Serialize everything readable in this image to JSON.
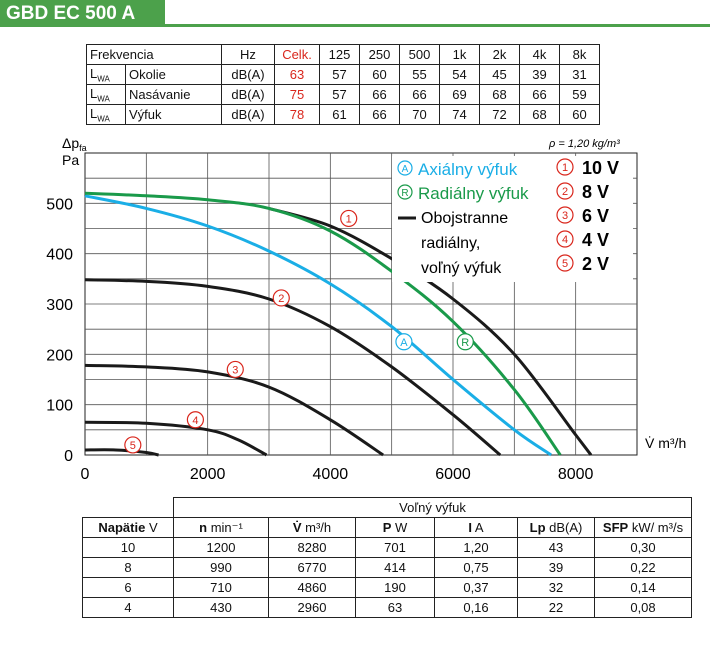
{
  "title": "GBD EC 500 A",
  "noise_table": {
    "headers": [
      "Frekvencia",
      "Hz",
      "Celk.",
      "125",
      "250",
      "500",
      "1k",
      "2k",
      "4k",
      "8k"
    ],
    "lwa": "L",
    "lwa_sub": "WA",
    "rows": [
      {
        "label": "Okolie",
        "unit": "dB(A)",
        "total": "63",
        "values": [
          "57",
          "60",
          "55",
          "54",
          "45",
          "39",
          "31"
        ]
      },
      {
        "label": "Nasávanie",
        "unit": "dB(A)",
        "total": "75",
        "values": [
          "57",
          "66",
          "66",
          "69",
          "68",
          "66",
          "59"
        ]
      },
      {
        "label": "Výfuk",
        "unit": "dB(A)",
        "total": "78",
        "values": [
          "61",
          "66",
          "70",
          "74",
          "72",
          "68",
          "60"
        ]
      }
    ]
  },
  "density_note": "ρ = 1,20 kg/m³",
  "chart_data": {
    "type": "line",
    "ylabel_main": "Δp",
    "ylabel_sub": "fa",
    "ylabel_unit": "Pa",
    "xlabel": "V̇ m³/h",
    "xlim": [
      0,
      9000
    ],
    "ylim": [
      0,
      600
    ],
    "xticks": [
      0,
      2000,
      4000,
      6000,
      8000
    ],
    "yticks": [
      0,
      100,
      200,
      300,
      400,
      500
    ],
    "grid": true,
    "legend": {
      "axial_marker": "A",
      "axial_label": "Axiálny výfuk",
      "radial_marker": "R",
      "radial_label": "Radiálny výfuk",
      "both_label_1": "Obojstranne",
      "both_label_2": "radiálny,",
      "both_label_3": "voľný výfuk",
      "speeds": [
        {
          "marker": "1",
          "label": "10 V"
        },
        {
          "marker": "2",
          "label": "8 V"
        },
        {
          "marker": "3",
          "label": "6 V"
        },
        {
          "marker": "4",
          "label": "4 V"
        },
        {
          "marker": "5",
          "label": "2 V"
        }
      ]
    },
    "colors": {
      "axial": "#1aaee6",
      "radial": "#1a9a4a",
      "both": "#1a1a1a",
      "marker": "#d9261c"
    },
    "series": [
      {
        "name": "Axiálny výfuk",
        "marker": "A",
        "color": "#1aaee6",
        "points": [
          [
            0,
            515
          ],
          [
            1000,
            490
          ],
          [
            2000,
            455
          ],
          [
            3000,
            405
          ],
          [
            4000,
            340
          ],
          [
            5000,
            255
          ],
          [
            6000,
            150
          ],
          [
            7000,
            50
          ],
          [
            7600,
            0
          ]
        ],
        "marker_point": [
          5200,
          225
        ]
      },
      {
        "name": "Radiálny výfuk",
        "marker": "R",
        "color": "#1a9a4a",
        "points": [
          [
            0,
            520
          ],
          [
            1000,
            515
          ],
          [
            2000,
            507
          ],
          [
            3000,
            490
          ],
          [
            4000,
            445
          ],
          [
            5000,
            365
          ],
          [
            6000,
            265
          ],
          [
            7000,
            130
          ],
          [
            7750,
            0
          ]
        ],
        "marker_point": [
          6200,
          225
        ]
      },
      {
        "name": "10 V",
        "marker": "1",
        "color": "#1a1a1a",
        "points": [
          [
            3000,
            490
          ],
          [
            4000,
            455
          ],
          [
            5000,
            390
          ],
          [
            6000,
            310
          ],
          [
            7000,
            200
          ],
          [
            8000,
            40
          ],
          [
            8250,
            0
          ]
        ],
        "marker_point": [
          4300,
          470
        ]
      },
      {
        "name": "8 V",
        "marker": "2",
        "color": "#1a1a1a",
        "points": [
          [
            0,
            348
          ],
          [
            1000,
            345
          ],
          [
            2000,
            335
          ],
          [
            3000,
            310
          ],
          [
            4000,
            255
          ],
          [
            5000,
            175
          ],
          [
            6000,
            80
          ],
          [
            6770,
            0
          ]
        ],
        "marker_point": [
          3200,
          312
        ]
      },
      {
        "name": "6 V",
        "marker": "3",
        "color": "#1a1a1a",
        "points": [
          [
            0,
            178
          ],
          [
            1000,
            175
          ],
          [
            2000,
            165
          ],
          [
            3000,
            135
          ],
          [
            4000,
            70
          ],
          [
            4860,
            0
          ]
        ],
        "marker_point": [
          2450,
          170
        ]
      },
      {
        "name": "4 V",
        "marker": "4",
        "color": "#1a1a1a",
        "points": [
          [
            0,
            65
          ],
          [
            1000,
            63
          ],
          [
            2000,
            50
          ],
          [
            2500,
            30
          ],
          [
            2960,
            0
          ]
        ],
        "marker_point": [
          1800,
          70
        ]
      },
      {
        "name": "2 V",
        "marker": "5",
        "color": "#1a1a1a",
        "points": [
          [
            0,
            10
          ],
          [
            500,
            10
          ],
          [
            1000,
            5
          ],
          [
            1200,
            0
          ]
        ],
        "marker_point": [
          780,
          20
        ]
      }
    ]
  },
  "perf_table": {
    "group_header": "Voľný výfuk",
    "headers": [
      {
        "b": "Napätie",
        "u": " V"
      },
      {
        "b": "n",
        "u": " min⁻¹"
      },
      {
        "b": "V̇",
        "u": " m³/h"
      },
      {
        "b": "P",
        "u": " W"
      },
      {
        "b": "I",
        "u": " A"
      },
      {
        "b": "Lp",
        "u": " dB(A)"
      },
      {
        "b": "SFP",
        "u": " kW/ m³/s"
      }
    ],
    "rows": [
      [
        "10",
        "1200",
        "8280",
        "701",
        "1,20",
        "43",
        "0,30"
      ],
      [
        "8",
        "990",
        "6770",
        "414",
        "0,75",
        "39",
        "0,22"
      ],
      [
        "6",
        "710",
        "4860",
        "190",
        "0,37",
        "32",
        "0,14"
      ],
      [
        "4",
        "430",
        "2960",
        "63",
        "0,16",
        "22",
        "0,08"
      ]
    ]
  }
}
